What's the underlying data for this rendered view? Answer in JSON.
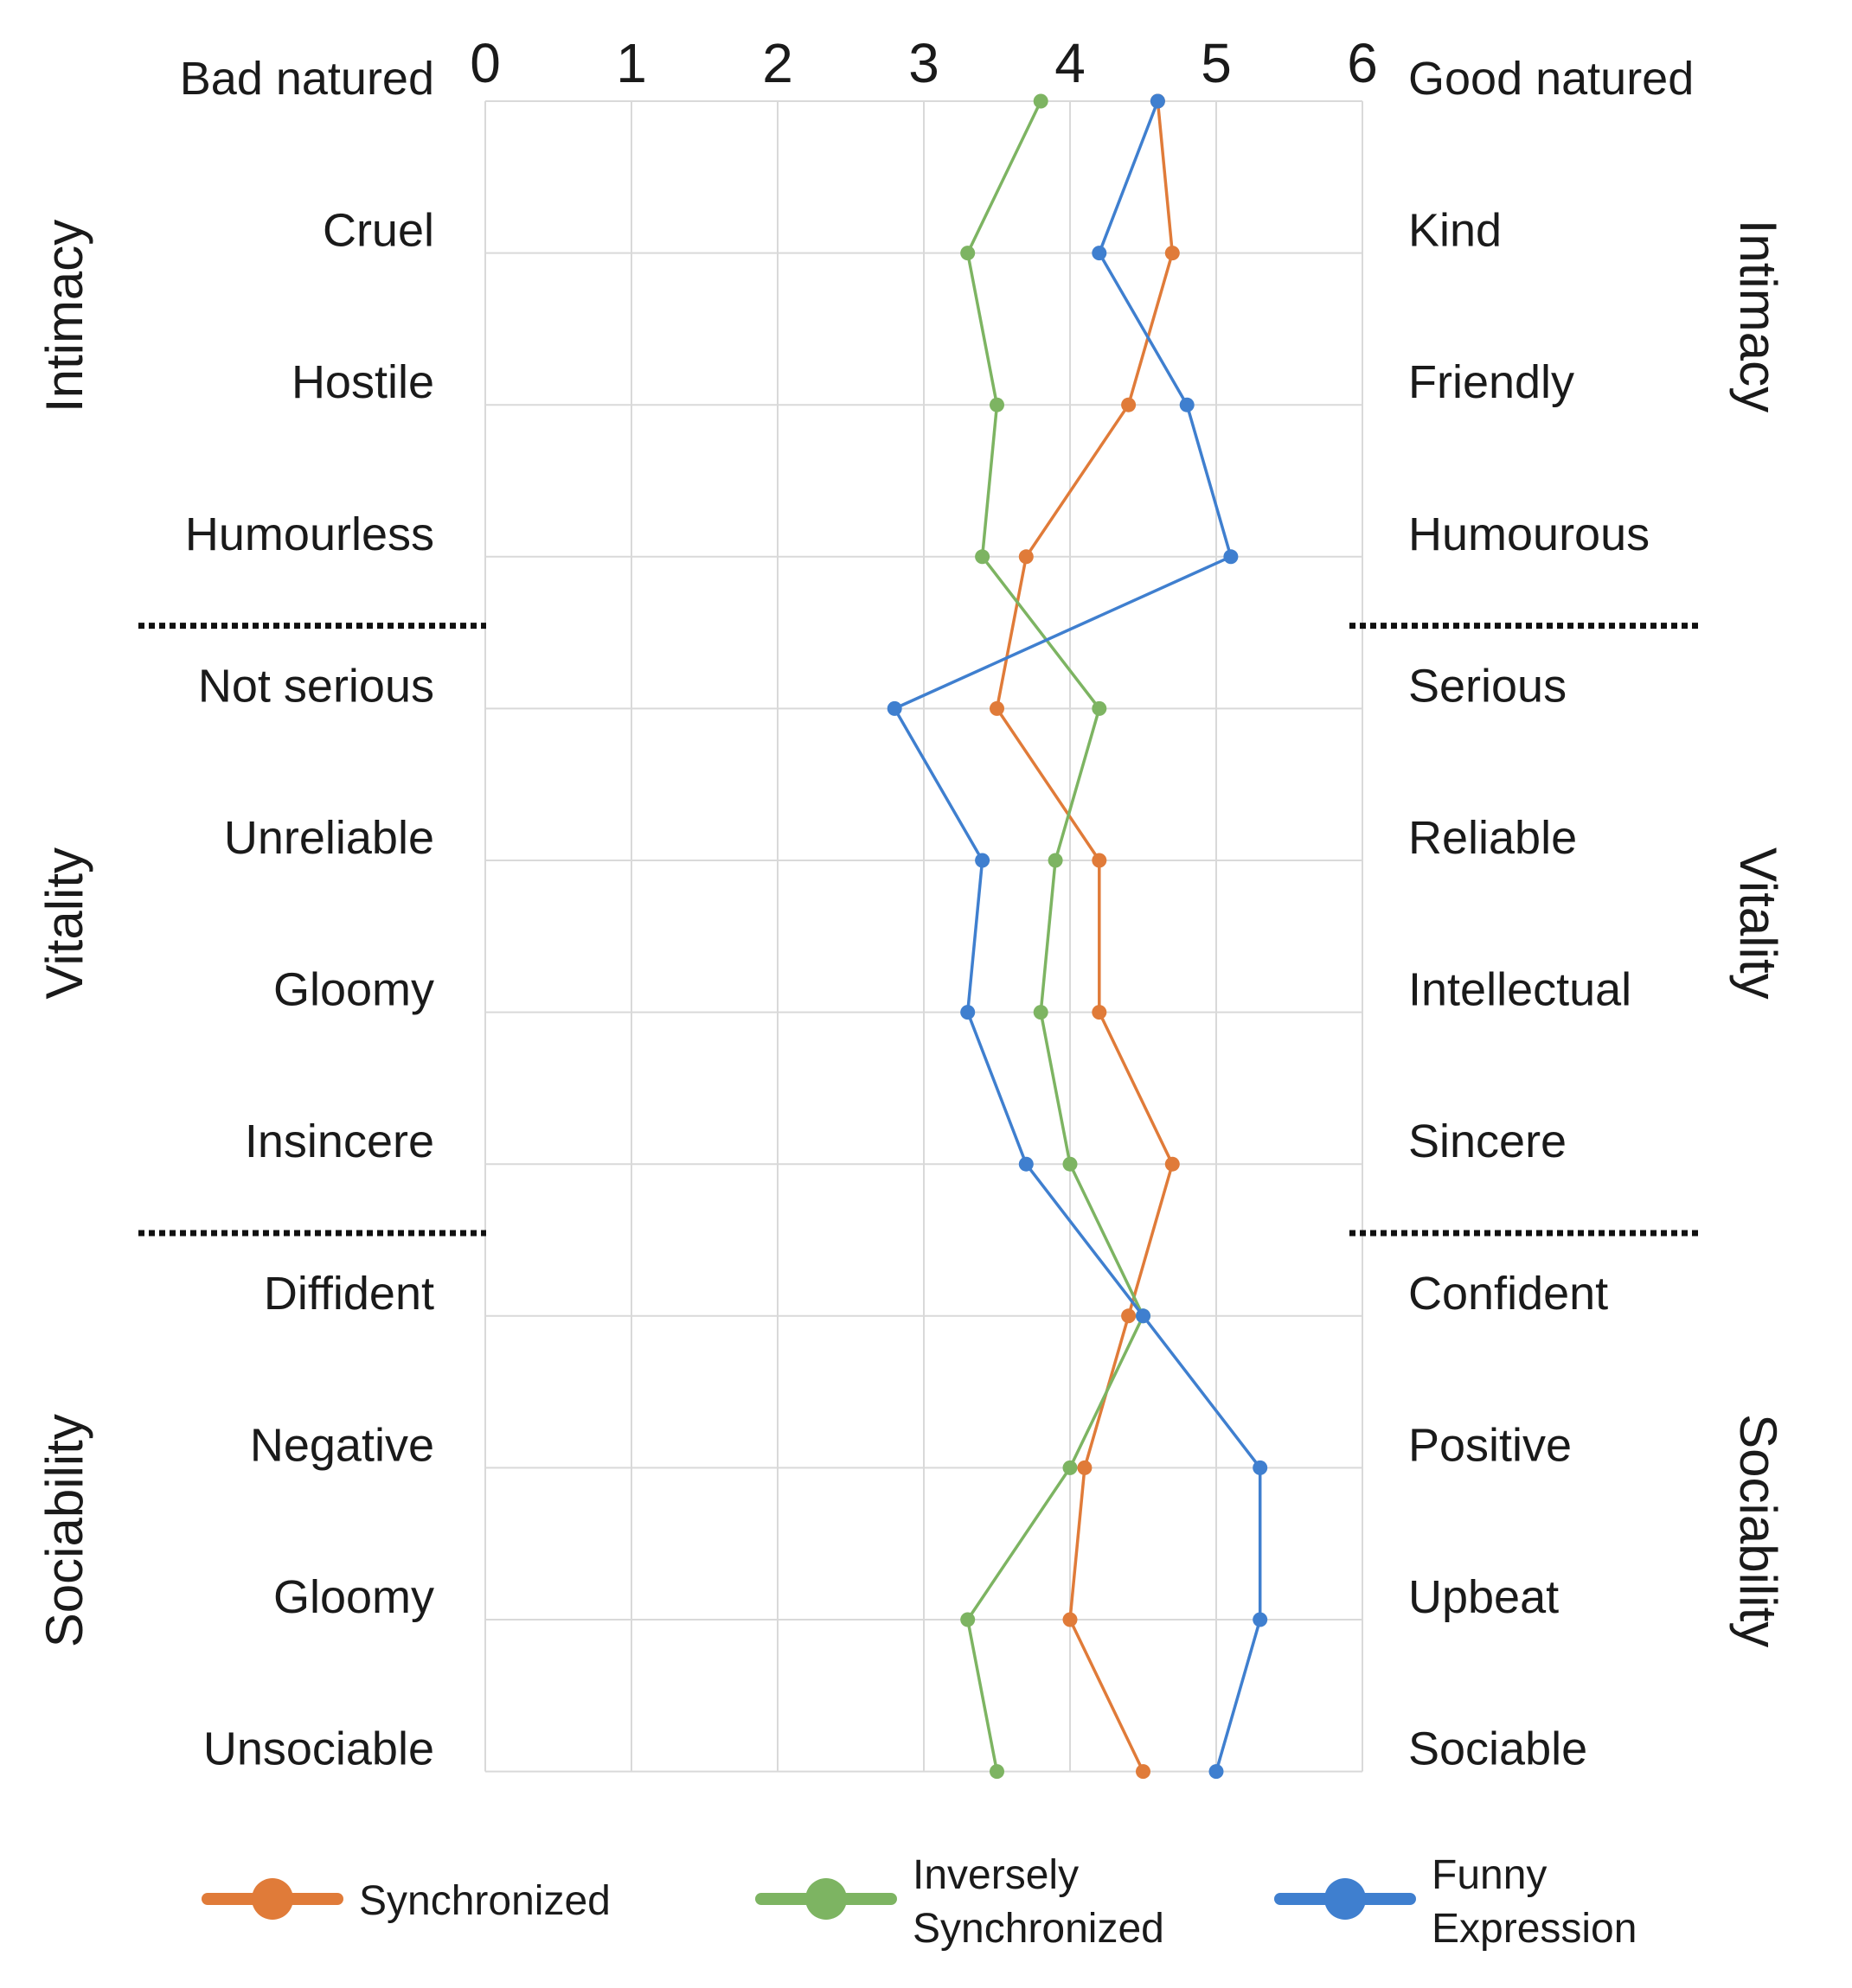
{
  "chart_data": {
    "type": "line",
    "xlim": [
      0,
      6
    ],
    "x_ticks": [
      "0",
      "1",
      "2",
      "3",
      "4",
      "5",
      "6"
    ],
    "left_labels": [
      "Bad natured",
      "Cruel",
      "Hostile",
      "Humourless",
      "Not serious",
      "Unreliable",
      "Gloomy",
      "Insincere",
      "Diffident",
      "Negative",
      "Gloomy",
      "Unsociable"
    ],
    "right_labels": [
      "Good natured",
      "Kind",
      "Friendly",
      "Humourous",
      "Serious",
      "Reliable",
      "Intellectual",
      "Sincere",
      "Confident",
      "Positive",
      "Upbeat",
      "Sociable"
    ],
    "groups": [
      {
        "name": "Intimacy",
        "start": 0,
        "end": 3
      },
      {
        "name": "Vitality",
        "start": 4,
        "end": 7
      },
      {
        "name": "Sociability",
        "start": 8,
        "end": 11
      }
    ],
    "series": [
      {
        "name": "Synchronized",
        "color": "#E07B39",
        "values": [
          4.6,
          4.7,
          4.4,
          3.7,
          3.5,
          4.2,
          4.2,
          4.7,
          4.4,
          4.1,
          4.0,
          4.5
        ]
      },
      {
        "name": "Inversely Synchronized",
        "color": "#7DB462",
        "values": [
          3.8,
          3.3,
          3.5,
          3.4,
          4.2,
          3.9,
          3.8,
          4.0,
          4.5,
          4.0,
          3.3,
          3.5
        ]
      },
      {
        "name": "Funny Expression",
        "color": "#3F7FCF",
        "values": [
          4.6,
          4.2,
          4.8,
          5.1,
          2.8,
          3.4,
          3.3,
          3.7,
          4.5,
          5.3,
          5.3,
          5.0
        ]
      }
    ],
    "legend": {
      "position": "bottom",
      "entries": [
        {
          "lines": [
            "Synchronized"
          ]
        },
        {
          "lines": [
            "Inversely",
            "Synchronized"
          ]
        },
        {
          "lines": [
            "Funny",
            "Expression"
          ]
        }
      ]
    }
  }
}
